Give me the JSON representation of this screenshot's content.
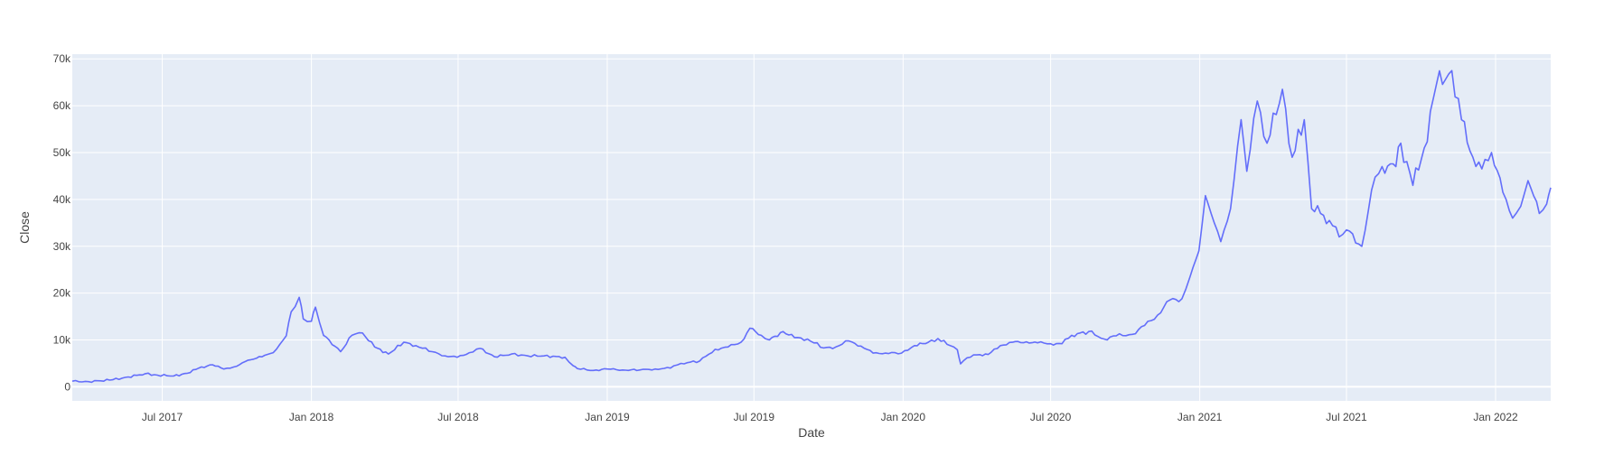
{
  "chart_data": {
    "type": "line",
    "title": "",
    "xlabel": "Date",
    "ylabel": "Close",
    "x_range": [
      "2017-03-12",
      "2022-03-10"
    ],
    "ylim": [
      -3000,
      71000
    ],
    "grid": true,
    "legend": "none",
    "colors": {
      "plot_bg": "#E5ECF6",
      "grid": "#FFFFFF",
      "line": "#636EFA",
      "text": "#444444"
    },
    "x_ticks": [
      {
        "date": "2017-07-01",
        "label": "Jul 2017"
      },
      {
        "date": "2018-01-01",
        "label": "Jan 2018"
      },
      {
        "date": "2018-07-01",
        "label": "Jul 2018"
      },
      {
        "date": "2019-01-01",
        "label": "Jan 2019"
      },
      {
        "date": "2019-07-01",
        "label": "Jul 2019"
      },
      {
        "date": "2020-01-01",
        "label": "Jan 2020"
      },
      {
        "date": "2020-07-01",
        "label": "Jul 2020"
      },
      {
        "date": "2021-01-01",
        "label": "Jan 2021"
      },
      {
        "date": "2021-07-01",
        "label": "Jul 2021"
      },
      {
        "date": "2022-01-01",
        "label": "Jan 2022"
      }
    ],
    "y_ticks": [
      {
        "value": 0,
        "label": "0"
      },
      {
        "value": 10000,
        "label": "10k"
      },
      {
        "value": 20000,
        "label": "20k"
      },
      {
        "value": 30000,
        "label": "30k"
      },
      {
        "value": 40000,
        "label": "40k"
      },
      {
        "value": 50000,
        "label": "50k"
      },
      {
        "value": 60000,
        "label": "60k"
      },
      {
        "value": 70000,
        "label": "70k"
      }
    ],
    "series": [
      {
        "x": [
          "2017-03-12",
          "2017-04-01",
          "2017-05-01",
          "2017-05-20",
          "2017-06-10",
          "2017-06-25",
          "2017-07-15",
          "2017-08-01",
          "2017-08-15",
          "2017-09-01",
          "2017-09-15",
          "2017-10-01",
          "2017-10-15",
          "2017-11-01",
          "2017-11-15",
          "2017-12-01",
          "2017-12-07",
          "2017-12-17",
          "2017-12-22",
          "2018-01-01",
          "2018-01-06",
          "2018-01-16",
          "2018-02-06",
          "2018-02-20",
          "2018-03-05",
          "2018-03-20",
          "2018-04-06",
          "2018-04-25",
          "2018-05-10",
          "2018-05-30",
          "2018-06-15",
          "2018-06-30",
          "2018-07-15",
          "2018-07-28",
          "2018-08-15",
          "2018-09-05",
          "2018-09-25",
          "2018-10-15",
          "2018-11-10",
          "2018-11-20",
          "2018-11-25",
          "2018-12-15",
          "2019-01-01",
          "2019-01-20",
          "2019-02-10",
          "2019-03-01",
          "2019-03-20",
          "2019-04-02",
          "2019-04-25",
          "2019-05-14",
          "2019-05-30",
          "2019-06-15",
          "2019-06-26",
          "2019-07-10",
          "2019-07-20",
          "2019-08-06",
          "2019-08-20",
          "2019-09-05",
          "2019-09-25",
          "2019-10-10",
          "2019-10-26",
          "2019-11-10",
          "2019-11-25",
          "2019-12-10",
          "2019-12-30",
          "2020-01-15",
          "2020-02-01",
          "2020-02-13",
          "2020-02-28",
          "2020-03-08",
          "2020-03-12",
          "2020-03-20",
          "2020-04-01",
          "2020-04-15",
          "2020-04-30",
          "2020-05-15",
          "2020-06-01",
          "2020-06-15",
          "2020-07-01",
          "2020-07-15",
          "2020-07-27",
          "2020-08-17",
          "2020-09-05",
          "2020-09-20",
          "2020-10-10",
          "2020-10-25",
          "2020-11-10",
          "2020-11-25",
          "2020-12-10",
          "2020-12-20",
          "2020-12-31",
          "2021-01-08",
          "2021-01-15",
          "2021-01-27",
          "2021-02-08",
          "2021-02-21",
          "2021-02-28",
          "2021-03-13",
          "2021-03-25",
          "2021-04-13",
          "2021-04-25",
          "2021-05-10",
          "2021-05-19",
          "2021-05-30",
          "2021-06-10",
          "2021-06-22",
          "2021-07-01",
          "2021-07-20",
          "2021-08-01",
          "2021-08-14",
          "2021-08-31",
          "2021-09-06",
          "2021-09-21",
          "2021-10-05",
          "2021-10-20",
          "2021-11-08",
          "2021-11-20",
          "2021-12-04",
          "2021-12-15",
          "2021-12-27",
          "2022-01-10",
          "2022-01-22",
          "2022-02-01",
          "2022-02-10",
          "2022-02-24",
          "2022-03-05",
          "2022-03-10"
        ],
        "y": [
          1200,
          1100,
          1500,
          2100,
          2800,
          2500,
          2300,
          2900,
          4000,
          4700,
          3800,
          4400,
          5700,
          6400,
          7300,
          10900,
          16000,
          19100,
          14500,
          14000,
          17000,
          11000,
          7500,
          11000,
          11500,
          8500,
          7000,
          9500,
          8800,
          7500,
          6600,
          6300,
          7300,
          8200,
          6400,
          7000,
          6600,
          6600,
          6300,
          4500,
          3900,
          3500,
          3800,
          3600,
          3600,
          3800,
          4000,
          5000,
          5500,
          8000,
          8500,
          9500,
          12500,
          11000,
          10000,
          11800,
          10500,
          10200,
          8300,
          8500,
          9800,
          8700,
          7200,
          7200,
          7200,
          8800,
          9500,
          10300,
          8800,
          7900,
          4900,
          6200,
          6800,
          6900,
          8800,
          9500,
          9600,
          9400,
          9200,
          9200,
          11000,
          11800,
          10200,
          10900,
          11200,
          13100,
          15300,
          18500,
          18800,
          23500,
          29000,
          40800,
          37000,
          31000,
          38000,
          57000,
          46000,
          61000,
          52000,
          63500,
          49000,
          57000,
          38000,
          37000,
          35500,
          32000,
          33500,
          30000,
          42000,
          47000,
          47000,
          52000,
          43000,
          51000,
          64500,
          67500,
          57000,
          49000,
          46500,
          50000,
          41500,
          36000,
          38500,
          44000,
          37000,
          39000,
          42500
        ]
      }
    ]
  }
}
